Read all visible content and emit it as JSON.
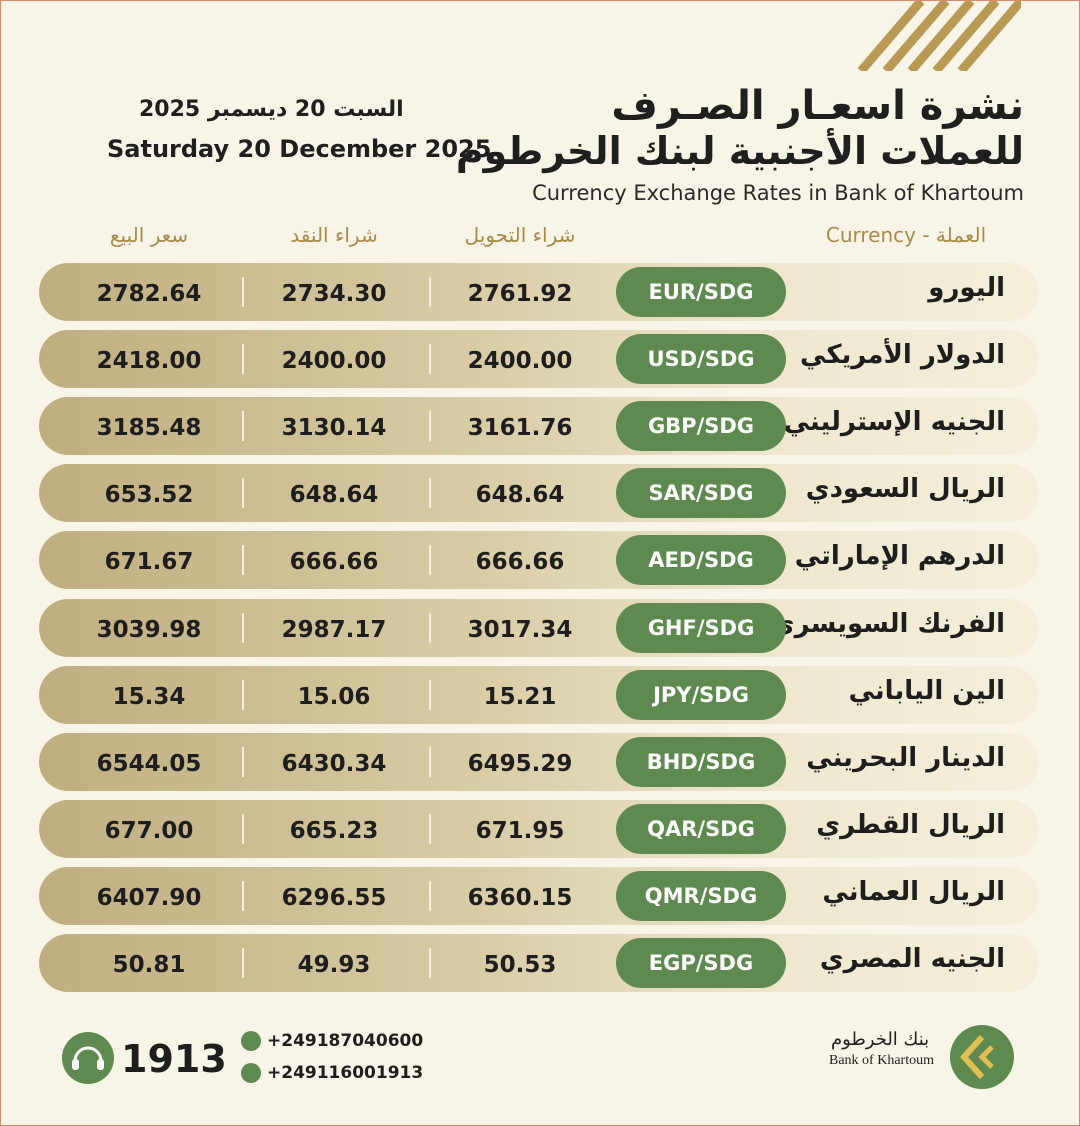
{
  "header": {
    "title_ar_line1": "نشرة اسعـار الصـرف",
    "title_ar_line2": "للعملات الأجنبية لبنك الخرطوم",
    "title_en": "Currency Exchange Rates in Bank of Khartoum",
    "date_ar": "السبت 20 ديسمبر 2025",
    "date_en": "Saturday 20 December 2025"
  },
  "table": {
    "columns": [
      "Currency - العملة",
      "شراء التحويل",
      "شراء النقد",
      "سعر البيع"
    ],
    "rows": [
      [
        "اليورو",
        "EUR/SDG",
        "2761.92",
        "2734.30",
        "2782.64"
      ],
      [
        "الدولار الأمريكي",
        "USD/SDG",
        "2400.00",
        "2400.00",
        "2418.00"
      ],
      [
        "الجنيه الإسترليني",
        "GBP/SDG",
        "3161.76",
        "3130.14",
        "3185.48"
      ],
      [
        "الريال السعودي",
        "SAR/SDG",
        "648.64",
        "648.64",
        "653.52"
      ],
      [
        "الدرهم الإماراتي",
        "AED/SDG",
        "666.66",
        "666.66",
        "671.67"
      ],
      [
        "الفرنك السويسري",
        "GHF/SDG",
        "3017.34",
        "2987.17",
        "3039.98"
      ],
      [
        "الين الياباني",
        "JPY/SDG",
        "15.21",
        "15.06",
        "15.34"
      ],
      [
        "الدينار البحريني",
        "BHD/SDG",
        "6495.29",
        "6430.34",
        "6544.05"
      ],
      [
        "الريال القطري",
        "QAR/SDG",
        "671.95",
        "665.23",
        "677.00"
      ],
      [
        "الريال العماني",
        "QMR/SDG",
        "6360.15",
        "6296.55",
        "6407.90"
      ],
      [
        "الجنيه المصري",
        "EGP/SDG",
        "50.53",
        "49.93",
        "50.81"
      ]
    ]
  },
  "footer": {
    "hotline": "1913",
    "phone": "+249187040600",
    "whatsapp": "+249116001913",
    "logo_ar": "بنك الخرطوم",
    "logo_en": "Bank of Khartoum"
  }
}
